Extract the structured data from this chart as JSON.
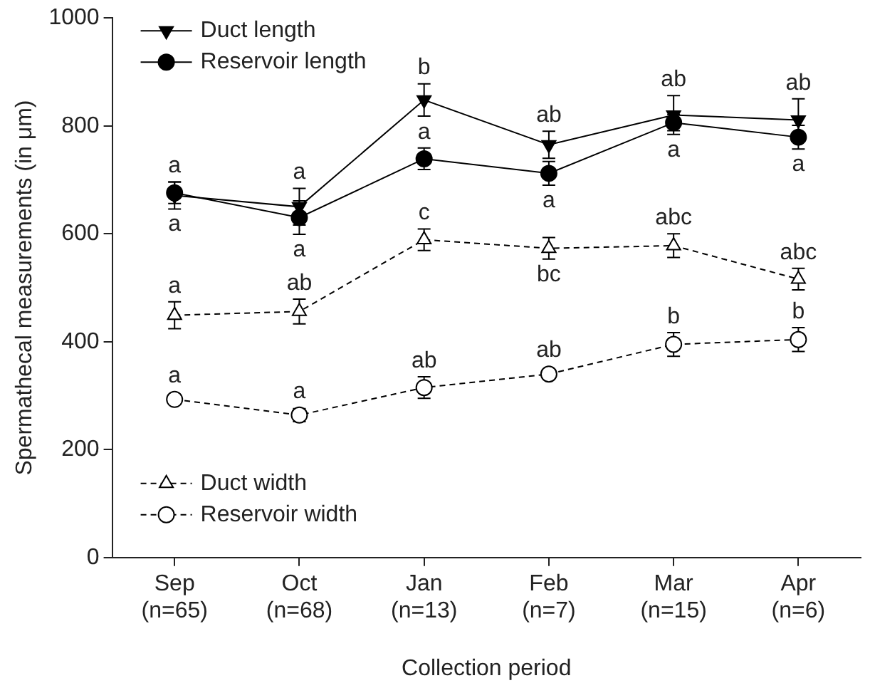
{
  "chart_data": {
    "type": "line",
    "xlabel": "Collection period",
    "ylabel": "Spermathecal measurements (in μm)",
    "categories": [
      "Sep\n(n=65)",
      "Oct\n(n=68)",
      "Jan\n(n=13)",
      "Feb\n(n=7)",
      "Mar\n(n=15)",
      "Apr\n(n=6)"
    ],
    "ylim": [
      0,
      1000
    ],
    "yticks": [
      0,
      200,
      400,
      600,
      800,
      1000
    ],
    "grid": false,
    "legend": "top left",
    "series": [
      {
        "name": "Duct length",
        "color": "#000000",
        "marker": "triangle",
        "line_style": "solid",
        "values": [
          671,
          650,
          848,
          765,
          820,
          811
        ],
        "errors": [
          25,
          34,
          30,
          25,
          36,
          39
        ],
        "value_labels": [
          "a",
          "a",
          "b",
          "ab",
          "ab",
          "ab"
        ]
      },
      {
        "name": "Reservoir length",
        "color": "#000000",
        "marker": "circle",
        "line_style": "solid",
        "values": [
          676,
          630,
          739,
          712,
          806,
          779
        ],
        "errors": [
          20,
          31,
          20,
          22,
          15,
          22
        ],
        "value_labels": [
          "a",
          "a",
          "a",
          "a",
          "a",
          "a"
        ]
      },
      {
        "name": "Duct width",
        "color": "#000000",
        "marker": "triangle",
        "line_style": "dashed",
        "values": [
          449,
          456,
          589,
          573,
          578,
          516
        ],
        "errors": [
          25,
          23,
          20,
          20,
          22,
          20
        ],
        "value_labels": [
          "a",
          "ab",
          "c",
          "bc",
          "abc",
          "abc"
        ]
      },
      {
        "name": "Reservoir width",
        "color": "#000000",
        "marker": "circle",
        "line_style": "dashed",
        "values": [
          293,
          264,
          315,
          340,
          395,
          404
        ],
        "errors": [
          null,
          12,
          20,
          null,
          22,
          22
        ],
        "value_labels": [
          "a",
          "a",
          "ab",
          "ab",
          "b",
          "b"
        ]
      }
    ]
  }
}
